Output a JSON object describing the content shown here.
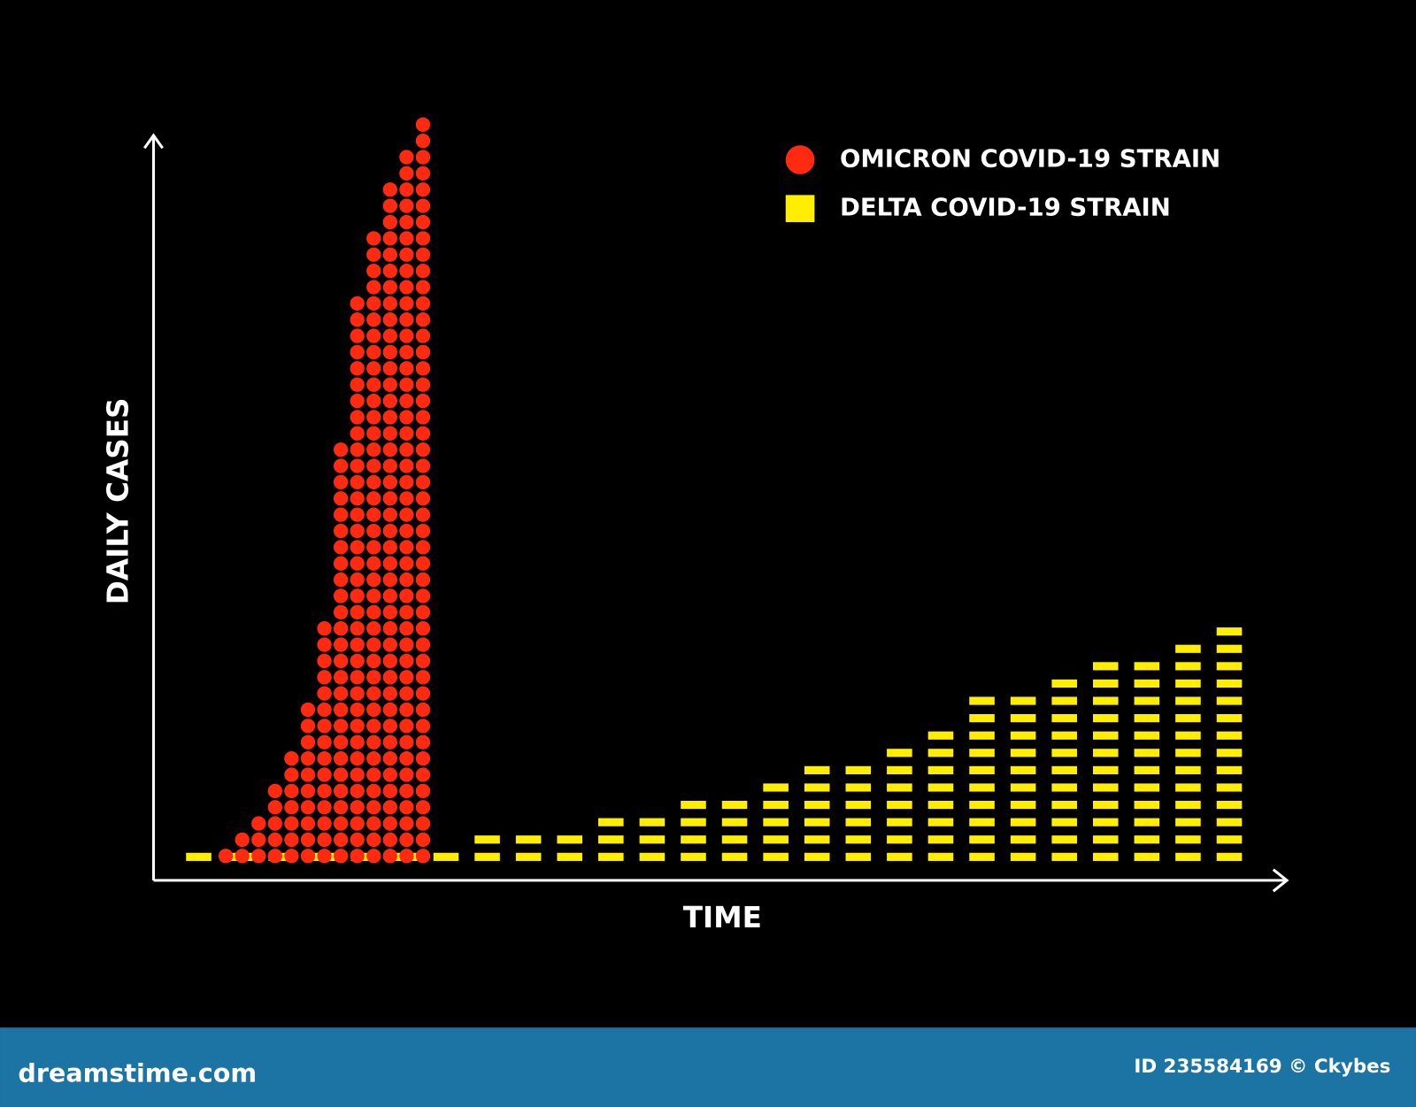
{
  "chart_data": {
    "type": "pictogram",
    "x_label": "TIME",
    "y_label": "DAILY CASES",
    "series": [
      {
        "name": "OMICRON COVID-19 STRAIN",
        "color": "#ff2a10",
        "marker": "circle",
        "values": [
          1,
          2,
          3,
          5,
          7,
          10,
          15,
          26,
          35,
          39,
          42,
          44,
          46
        ]
      },
      {
        "name": "DELTA COVID-19 STRAIN",
        "color": "#ffee00",
        "marker": "dash",
        "values": [
          1,
          1,
          1,
          1,
          1,
          1,
          1,
          2,
          2,
          2,
          3,
          3,
          4,
          4,
          5,
          6,
          6,
          7,
          8,
          10,
          10,
          11,
          12,
          12,
          13,
          14
        ]
      }
    ]
  },
  "footer": {
    "site": "dreamstime.com",
    "credit": "ID 235584169 © Ckybes"
  }
}
